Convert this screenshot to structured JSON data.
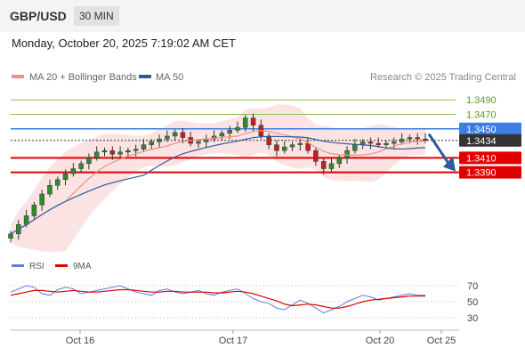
{
  "header": {
    "symbol": "GBP/USD",
    "timeframe": "30 MIN"
  },
  "datetime": "Monday, October 20, 2025 7:19:02 AM CET",
  "legend": {
    "ma20": "MA 20 + Bollinger Bands",
    "ma50": "MA 50",
    "source": "Research © 2025 Trading Central"
  },
  "colors": {
    "ma20": "#f28c8c",
    "ma50": "#2e5c9a",
    "bands": "#fbd9d9",
    "up": "#3a9a3a",
    "down": "#cc2e2e",
    "support": "#e00000",
    "resistance_green": "#8bc34a",
    "resistance_blue": "#3d7ee0",
    "rsi": "#5b7fd9",
    "rsi_ma": "#e00000",
    "arrow": "#2e5c9a"
  },
  "chart_data": [
    {
      "type": "candlestick",
      "x_tick_labels": [
        "Oct 16",
        "Oct 17",
        "Oct 20",
        "Oct 25"
      ],
      "series": [
        {
          "name": "MA 20 + Bollinger Bands"
        },
        {
          "name": "MA 50"
        }
      ],
      "ohlc_close_approx": [
        1.3305,
        1.3318,
        1.333,
        1.3345,
        1.336,
        1.3372,
        1.338,
        1.3388,
        1.3395,
        1.3402,
        1.341,
        1.3418,
        1.342,
        1.3415,
        1.3418,
        1.342,
        1.3422,
        1.3428,
        1.3432,
        1.3436,
        1.344,
        1.3445,
        1.3438,
        1.343,
        1.3432,
        1.3436,
        1.344,
        1.3444,
        1.3448,
        1.3452,
        1.3465,
        1.3455,
        1.344,
        1.3428,
        1.342,
        1.3425,
        1.3428,
        1.343,
        1.342,
        1.3405,
        1.3395,
        1.3402,
        1.341,
        1.342,
        1.3428,
        1.3432,
        1.343,
        1.3428,
        1.343,
        1.3432,
        1.3436,
        1.3438,
        1.3436,
        1.3434
      ],
      "horizontal_levels": [
        {
          "label": "1.3490",
          "value": 1.349,
          "style": "resistance",
          "color": "#8bc34a"
        },
        {
          "label": "1.3470",
          "value": 1.347,
          "style": "resistance",
          "color": "#8bc34a"
        },
        {
          "label": "1.3450",
          "value": 1.345,
          "style": "pivot",
          "color": "#3d7ee0"
        },
        {
          "label": "1.3434",
          "value": 1.3434,
          "style": "last",
          "color": "#333333"
        },
        {
          "label": "1.3410",
          "value": 1.341,
          "style": "support",
          "color": "#e00000"
        },
        {
          "label": "1.3390",
          "value": 1.339,
          "style": "support",
          "color": "#e00000"
        }
      ],
      "forecast_arrow": {
        "from": 1.3438,
        "to": 1.339,
        "direction": "down"
      },
      "ylim": [
        1.329,
        1.3505
      ],
      "grid": false
    },
    {
      "type": "line",
      "series": [
        {
          "name": "RSI",
          "values": [
            62,
            66,
            70,
            68,
            60,
            58,
            65,
            68,
            66,
            60,
            62,
            64,
            66,
            68,
            70,
            66,
            62,
            60,
            58,
            64,
            66,
            62,
            60,
            62,
            64,
            60,
            58,
            62,
            64,
            66,
            60,
            54,
            50,
            48,
            42,
            40,
            46,
            52,
            48,
            42,
            36,
            40,
            44,
            50,
            54,
            58,
            56,
            52,
            54,
            56,
            58,
            60,
            58,
            58
          ]
        },
        {
          "name": "9MA",
          "values": [
            58,
            60,
            62,
            64,
            64,
            63,
            62,
            63,
            64,
            63,
            62,
            62,
            63,
            64,
            65,
            65,
            64,
            63,
            62,
            62,
            63,
            63,
            62,
            62,
            62,
            62,
            61,
            61,
            62,
            63,
            62,
            60,
            57,
            54,
            51,
            47,
            45,
            46,
            47,
            46,
            44,
            42,
            42,
            44,
            47,
            50,
            52,
            53,
            54,
            55,
            56,
            57,
            57,
            57
          ]
        }
      ],
      "y_ticks": [
        "70",
        "50",
        "30"
      ],
      "ylim": [
        20,
        80
      ]
    }
  ]
}
